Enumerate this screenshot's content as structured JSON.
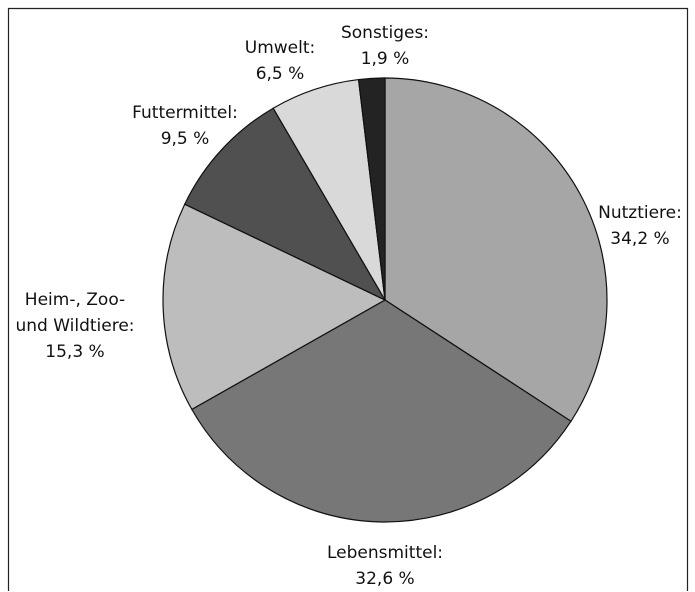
{
  "chart_data": {
    "type": "pie",
    "categories": [
      "Nutztiere:",
      "Lebensmittel:",
      "Heim-, Zoo-\nund Wildtiere:",
      "Futtermittel:",
      "Umwelt:",
      "Sonstiges:"
    ],
    "values": [
      34.2,
      32.6,
      15.3,
      9.5,
      6.5,
      1.9
    ],
    "value_labels": [
      "34,2 %",
      "32,6 %",
      "15,3 %",
      "9,5 %",
      "6,5 %",
      "1,9 %"
    ],
    "colors": [
      "#a6a6a6",
      "#777777",
      "#bdbdbd",
      "#505050",
      "#d9d9d9",
      "#232323"
    ]
  }
}
